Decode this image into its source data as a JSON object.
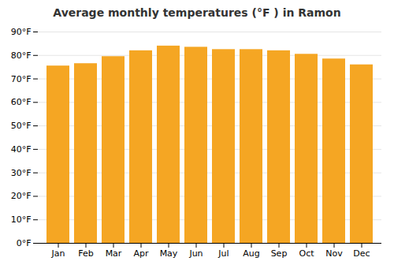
{
  "chart_data": {
    "type": "bar",
    "title": "Average monthly temperatures (°F ) in Ramon",
    "categories": [
      "Jan",
      "Feb",
      "Mar",
      "Apr",
      "May",
      "Jun",
      "Jul",
      "Aug",
      "Sep",
      "Oct",
      "Nov",
      "Dec"
    ],
    "values": [
      75.5,
      76.5,
      79.5,
      82.0,
      84.0,
      83.5,
      82.5,
      82.5,
      82.0,
      80.5,
      78.5,
      76.0
    ],
    "color": "#F5A623",
    "ylim": [
      0,
      90
    ],
    "yticks": [
      {
        "value": 0,
        "label": "0°F"
      },
      {
        "value": 10,
        "label": "10°F"
      },
      {
        "value": 20,
        "label": "20°F"
      },
      {
        "value": 30,
        "label": "30°F"
      },
      {
        "value": 40,
        "label": "40°F"
      },
      {
        "value": 50,
        "label": "50°F"
      },
      {
        "value": 60,
        "label": "60°F"
      },
      {
        "value": 70,
        "label": "70°F"
      },
      {
        "value": 80,
        "label": "80°F"
      },
      {
        "value": 90,
        "label": "90°F"
      }
    ],
    "grid": true
  }
}
